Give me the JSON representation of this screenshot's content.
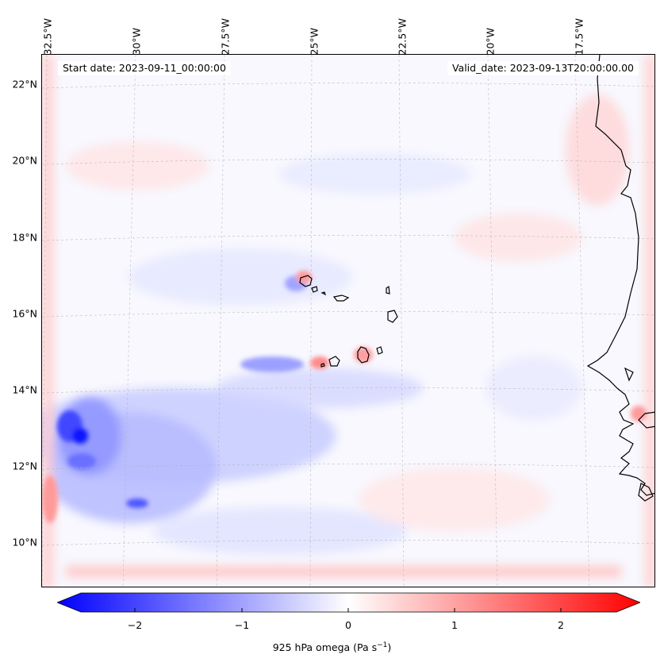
{
  "map": {
    "start_label": "Start date: 2023-09-11_00:00:00",
    "valid_label": "Valid_date: 2023-09-13T20:00:00.00",
    "lat_labels": [
      "22°N",
      "20°N",
      "18°N",
      "16°N",
      "14°N",
      "12°N",
      "10°N"
    ],
    "lon_labels": [
      "32.5°W",
      "30°W",
      "27.5°W",
      "25°W",
      "22.5°W",
      "20°W",
      "17.5°W"
    ],
    "colors": {
      "negative": "#0000ff",
      "neutral": "#ffffff",
      "positive": "#ff0000",
      "coastline": "#000000"
    }
  },
  "colorbar": {
    "ticks": [
      "−2",
      "−1",
      "0",
      "1",
      "2"
    ],
    "label": "925 hPa omega (Pa s",
    "label_exp": "−1",
    "label_end": ")",
    "vmin": -2.6,
    "vmax": 2.6
  }
}
